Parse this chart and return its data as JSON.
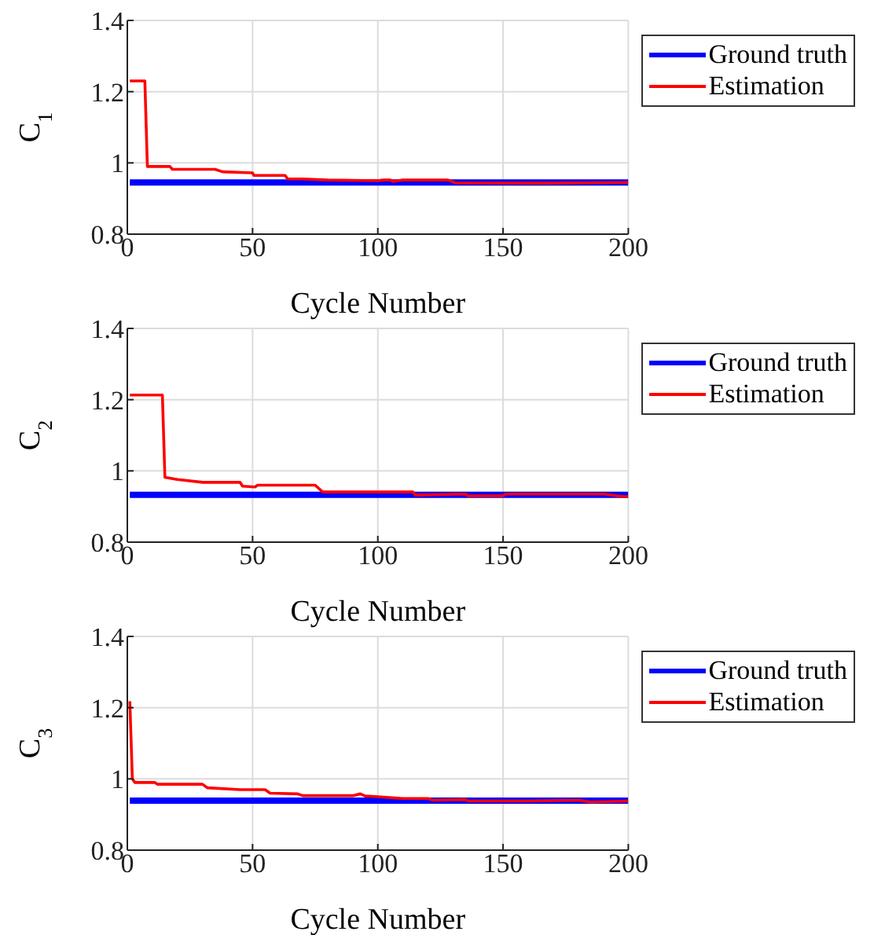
{
  "chart_data": [
    {
      "type": "line",
      "ylabel": "C$_{1}$",
      "xlabel": "Cycle Number",
      "xlim": [
        0,
        200
      ],
      "xticks": [
        0,
        50,
        100,
        150,
        200
      ],
      "ylim": [
        0.8,
        1.4
      ],
      "yticks": [
        0.8,
        1,
        1.2,
        1.4
      ],
      "grid": true,
      "legend": "top right",
      "series": [
        {
          "name": "Ground truth",
          "color": "#0000ff",
          "x": [
            1,
            200
          ],
          "values": [
            0.945,
            0.945
          ]
        },
        {
          "name": "Estimation",
          "color": "#ff0000",
          "x": [
            1,
            7,
            8,
            17,
            18,
            35,
            38,
            50,
            50.5,
            63,
            64,
            70,
            80,
            100,
            102,
            105,
            106,
            110,
            128,
            131,
            165,
            200
          ],
          "values": [
            1.23,
            1.23,
            0.99,
            0.99,
            0.982,
            0.982,
            0.975,
            0.972,
            0.965,
            0.965,
            0.955,
            0.955,
            0.952,
            0.95,
            0.952,
            0.952,
            0.948,
            0.952,
            0.952,
            0.944,
            0.943,
            0.945
          ]
        }
      ]
    },
    {
      "type": "line",
      "ylabel": "C$_{2}$",
      "xlabel": "Cycle Number",
      "xlim": [
        0,
        200
      ],
      "xticks": [
        0,
        50,
        100,
        150,
        200
      ],
      "ylim": [
        0.8,
        1.4
      ],
      "yticks": [
        0.8,
        1,
        1.2,
        1.4
      ],
      "grid": true,
      "legend": "top right",
      "series": [
        {
          "name": "Ground truth",
          "color": "#0000ff",
          "x": [
            1,
            200
          ],
          "values": [
            0.933,
            0.933
          ]
        },
        {
          "name": "Estimation",
          "color": "#ff0000",
          "x": [
            1,
            14,
            15,
            20,
            30,
            45,
            46,
            51,
            52,
            75,
            78,
            114,
            115,
            135,
            136,
            150,
            151,
            190,
            198,
            200
          ],
          "values": [
            1.213,
            1.213,
            0.982,
            0.976,
            0.968,
            0.968,
            0.957,
            0.955,
            0.96,
            0.96,
            0.941,
            0.941,
            0.932,
            0.935,
            0.93,
            0.93,
            0.935,
            0.935,
            0.928,
            0.928
          ]
        }
      ]
    },
    {
      "type": "line",
      "ylabel": "C$_{3}$",
      "xlabel": "Cycle Number",
      "xlim": [
        0,
        200
      ],
      "xticks": [
        0,
        50,
        100,
        150,
        200
      ],
      "ylim": [
        0.8,
        1.4
      ],
      "yticks": [
        0.8,
        1,
        1.2,
        1.4
      ],
      "grid": true,
      "legend": "top right",
      "series": [
        {
          "name": "Ground truth",
          "color": "#0000ff",
          "x": [
            1,
            200
          ],
          "values": [
            0.939,
            0.939
          ]
        },
        {
          "name": "Estimation",
          "color": "#ff0000",
          "x": [
            1,
            2,
            3,
            11,
            12,
            30,
            32,
            45,
            55,
            57,
            68,
            70,
            90,
            93,
            95,
            100,
            110,
            120,
            122,
            135,
            136,
            160,
            180,
            185,
            200
          ],
          "values": [
            1.218,
            1.0,
            0.99,
            0.99,
            0.985,
            0.985,
            0.975,
            0.97,
            0.97,
            0.96,
            0.958,
            0.953,
            0.953,
            0.958,
            0.952,
            0.95,
            0.945,
            0.945,
            0.94,
            0.942,
            0.938,
            0.938,
            0.94,
            0.935,
            0.938
          ]
        }
      ]
    }
  ]
}
